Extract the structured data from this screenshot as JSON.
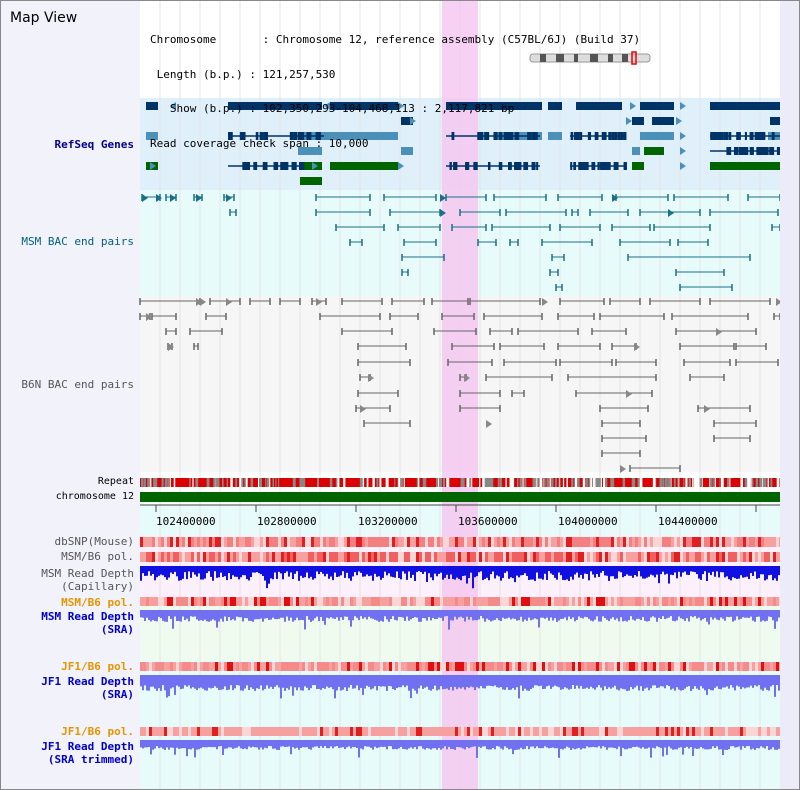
{
  "title": "Map View",
  "info": {
    "lines": [
      "Chromosome       : Chromosome 12, reference assembly (C57BL/6J) (Build 37)",
      " Length (b.p.) : 121,257,530",
      "   Show (b.p.) : 102,350,293-104,468,113 : 2,117,821 bp",
      "Read coverage check span : 10,000"
    ]
  },
  "tracks": {
    "refseq": "RefSeq Genes",
    "msm_bac": "MSM BAC end pairs",
    "b6n_bac": "B6N BAC end pairs",
    "repeat": "Repeat",
    "chromosome": "chromosome 12",
    "dbsnp": "dbSNP(Mouse)",
    "msm_b6_pol": "MSM/B6 pol.",
    "msm_depth_cap_1": "MSM Read Depth",
    "msm_depth_cap_2": "(Capillary)",
    "msm_b6_pol_2": "MSM/B6 pol.",
    "msm_depth_sra_1": "MSM Read Depth",
    "msm_depth_sra_2": "(SRA)",
    "jf1_b6_pol": "JF1/B6 pol.",
    "jf1_depth_1": "JF1 Read Depth",
    "jf1_depth_2": "(SRA)",
    "jf1_b6_pol_2": "JF1/B6 pol.",
    "jf1_trim_1": "JF1 Read Depth",
    "jf1_trim_2": "(SRA trimmed)"
  },
  "axis_ticks": [
    "102400000",
    "102800000",
    "103200000",
    "103600000",
    "104000000",
    "104400000"
  ],
  "colors": {
    "highlight": "#f5c6f0",
    "gene_dark": "#003366",
    "gene_light": "#4a90b8",
    "gene_green": "#006400",
    "msm_bac": "#1a6f8a",
    "b6n_bac": "#666666",
    "chromosome": "#006400",
    "depth_capillary": "#1010e0",
    "depth_sra": "#7070f0"
  }
}
